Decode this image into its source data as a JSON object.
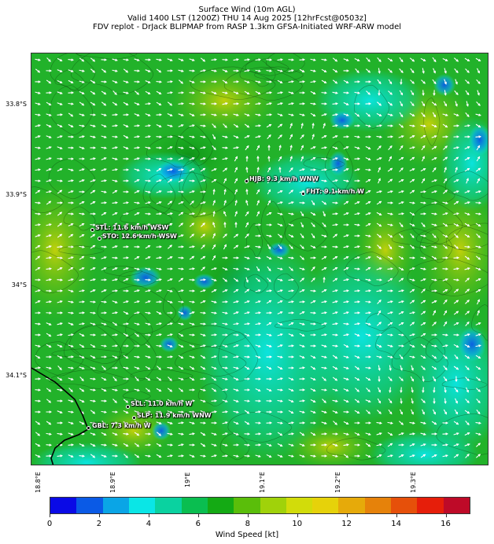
{
  "title": {
    "line1": "Surface Wind (10m AGL)",
    "line2": "Valid 1400 LST (1200Z) THU 14 Aug 2025 [12hrFcst@0503z]",
    "line3": "FDV replot - DrJack BLIPMAP from RASP 1.3km GFSA-Initiated WRF-ARW model"
  },
  "axes": {
    "lat_labels": [
      {
        "text": "33.8°S"
      },
      {
        "text": "33.9°S"
      },
      {
        "text": "34°S"
      },
      {
        "text": "34.1°S"
      }
    ],
    "lon_labels": [
      {
        "text": "18.8°E"
      },
      {
        "text": "18.9°E"
      },
      {
        "text": "19°E"
      },
      {
        "text": "19.1°E"
      },
      {
        "text": "19.2°E"
      },
      {
        "text": "19.3°E"
      }
    ]
  },
  "stations": [
    {
      "id": "HJB",
      "label": "HJB: 9.3 km/h WNW"
    },
    {
      "id": "FHT",
      "label": "FHT: 9.1 km/h W"
    },
    {
      "id": "STL",
      "label": "STL: 11.6 km/h WSW"
    },
    {
      "id": "STO",
      "label": "STO: 12.6 km/h WSW"
    },
    {
      "id": "SLL",
      "label": "SLL: 11.0 km/h W"
    },
    {
      "id": "SLP",
      "label": "SLP: 11.9 km/h WNW"
    },
    {
      "id": "GBL",
      "label": "GBL: 7.3 km/h W"
    }
  ],
  "colorbar": {
    "label": "Wind Speed [kt]",
    "min": 0,
    "max": 17,
    "colors": [
      "#0a0ae6",
      "#0a5ae6",
      "#0aa5e6",
      "#0ae6e6",
      "#0ad2a0",
      "#0abe50",
      "#14aa14",
      "#5abe0a",
      "#a0d20a",
      "#d2dc0a",
      "#e6d20a",
      "#e6aa0a",
      "#e6820a",
      "#e6500a",
      "#e61e0a",
      "#be0a28"
    ],
    "ticks": [
      "0",
      "2",
      "4",
      "6",
      "8",
      "10",
      "12",
      "14",
      "16"
    ]
  }
}
